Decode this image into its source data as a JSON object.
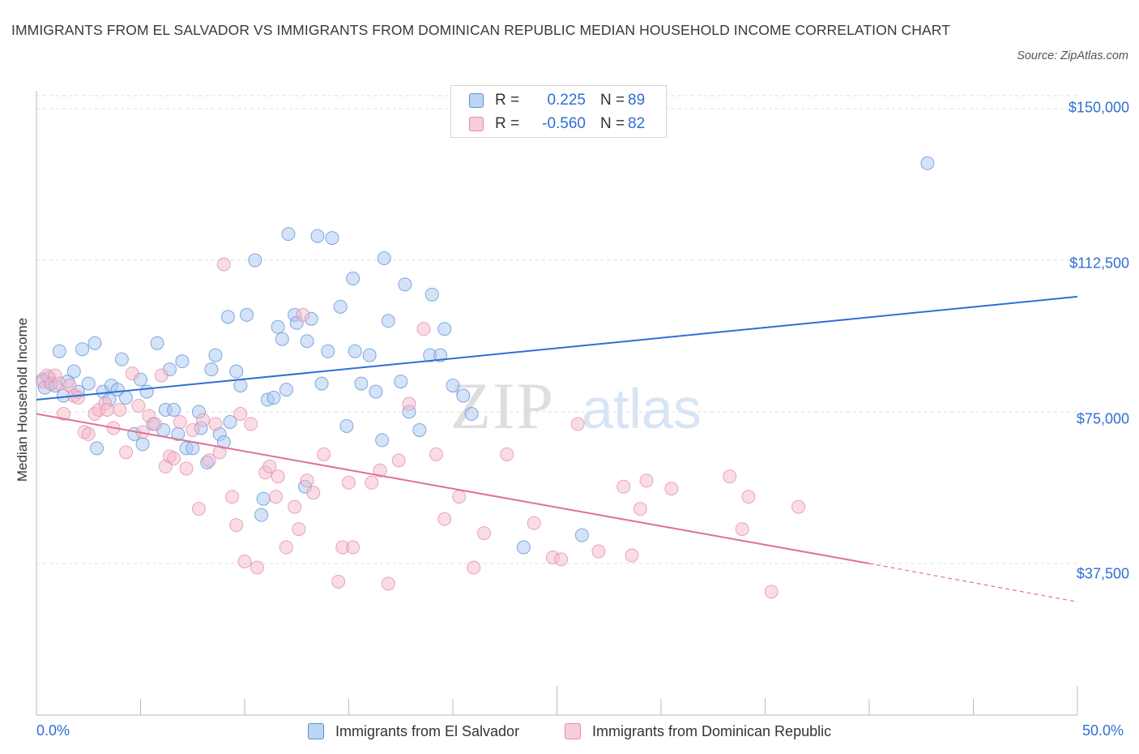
{
  "title": "IMMIGRANTS FROM EL SALVADOR VS IMMIGRANTS FROM DOMINICAN REPUBLIC MEDIAN HOUSEHOLD INCOME CORRELATION CHART",
  "source": "Source: ZipAtlas.com",
  "watermark": {
    "zip": "ZIP",
    "atlas": "atlas"
  },
  "colors": {
    "blue_fill": "#a9c8f2",
    "blue_stroke": "#5b8fd6",
    "blue_line": "#2f6fd4",
    "pink_fill": "#f5b9cb",
    "pink_stroke": "#e48aa8",
    "pink_line": "#e0709a",
    "axis_text": "#2f6fd4",
    "grid": "#dddddd"
  },
  "legend": {
    "rows": [
      {
        "r_label": "R =",
        "r_value": "0.225",
        "n_label": "N =",
        "n_value": "89"
      },
      {
        "r_label": "R =",
        "r_value": "-0.560",
        "n_label": "N =",
        "n_value": "82"
      }
    ]
  },
  "chart_data": {
    "type": "scatter",
    "title": "IMMIGRANTS FROM EL SALVADOR VS IMMIGRANTS FROM DOMINICAN REPUBLIC MEDIAN HOUSEHOLD INCOME CORRELATION CHART",
    "xlabel": "",
    "ylabel": "Median Household Income",
    "xlim": [
      0,
      50
    ],
    "ylim": [
      0,
      150000
    ],
    "x_tick_labels": [
      "0.0%",
      "50.0%"
    ],
    "y_ticks": [
      37500,
      75000,
      112500,
      150000
    ],
    "y_tick_labels": [
      "$37,500",
      "$75,000",
      "$112,500",
      "$150,000"
    ],
    "grid": true,
    "series": [
      {
        "name": "Immigrants from El Salvador",
        "color": "blue",
        "trend": {
          "x": [
            0,
            50
          ],
          "y": [
            78000,
            103500
          ]
        },
        "points": [
          [
            0.3,
            83000
          ],
          [
            0.4,
            81000
          ],
          [
            0.6,
            83500
          ],
          [
            0.7,
            82000
          ],
          [
            0.9,
            81500
          ],
          [
            1.1,
            90000
          ],
          [
            1.3,
            79000
          ],
          [
            1.5,
            82500
          ],
          [
            1.8,
            85000
          ],
          [
            2.0,
            80000
          ],
          [
            2.2,
            90500
          ],
          [
            2.5,
            82000
          ],
          [
            2.8,
            92000
          ],
          [
            2.9,
            66000
          ],
          [
            3.2,
            80000
          ],
          [
            3.5,
            78000
          ],
          [
            3.6,
            81500
          ],
          [
            3.9,
            80500
          ],
          [
            4.1,
            88000
          ],
          [
            4.3,
            78500
          ],
          [
            4.7,
            69500
          ],
          [
            5.0,
            83000
          ],
          [
            5.1,
            67000
          ],
          [
            5.3,
            80000
          ],
          [
            5.6,
            72000
          ],
          [
            5.8,
            92000
          ],
          [
            6.1,
            70500
          ],
          [
            6.2,
            75500
          ],
          [
            6.4,
            85500
          ],
          [
            6.6,
            75500
          ],
          [
            6.8,
            69500
          ],
          [
            7.0,
            87500
          ],
          [
            7.2,
            66000
          ],
          [
            7.5,
            66000
          ],
          [
            7.8,
            75000
          ],
          [
            7.9,
            71000
          ],
          [
            8.2,
            62500
          ],
          [
            8.4,
            85500
          ],
          [
            8.6,
            89000
          ],
          [
            8.8,
            69500
          ],
          [
            9.0,
            67500
          ],
          [
            9.2,
            98500
          ],
          [
            9.3,
            72500
          ],
          [
            9.6,
            85000
          ],
          [
            9.8,
            81500
          ],
          [
            10.1,
            99000
          ],
          [
            10.5,
            112500
          ],
          [
            10.9,
            53500
          ],
          [
            10.8,
            49500
          ],
          [
            11.1,
            78000
          ],
          [
            11.4,
            78500
          ],
          [
            11.6,
            96000
          ],
          [
            11.8,
            93000
          ],
          [
            12.0,
            80500
          ],
          [
            12.1,
            119000
          ],
          [
            12.4,
            99000
          ],
          [
            12.5,
            97000
          ],
          [
            12.9,
            56500
          ],
          [
            13.0,
            92500
          ],
          [
            13.2,
            98000
          ],
          [
            13.5,
            118500
          ],
          [
            13.7,
            82000
          ],
          [
            14.0,
            90000
          ],
          [
            14.2,
            118000
          ],
          [
            14.6,
            101000
          ],
          [
            14.9,
            71500
          ],
          [
            15.2,
            108000
          ],
          [
            15.3,
            90000
          ],
          [
            15.6,
            82000
          ],
          [
            16.0,
            89000
          ],
          [
            16.3,
            80000
          ],
          [
            16.6,
            68000
          ],
          [
            16.7,
            113000
          ],
          [
            16.9,
            97500
          ],
          [
            17.5,
            82500
          ],
          [
            17.7,
            106500
          ],
          [
            17.9,
            75000
          ],
          [
            18.4,
            70500
          ],
          [
            18.9,
            89000
          ],
          [
            19.0,
            104000
          ],
          [
            19.4,
            89000
          ],
          [
            19.6,
            95500
          ],
          [
            20.0,
            81500
          ],
          [
            20.5,
            79000
          ],
          [
            20.9,
            74500
          ],
          [
            23.4,
            41500
          ],
          [
            26.2,
            44500
          ],
          [
            42.8,
            136500
          ]
        ]
      },
      {
        "name": "Immigrants from Dominican Republic",
        "color": "pink",
        "trend": {
          "x": [
            0,
            40
          ],
          "y": [
            74500,
            37500
          ]
        },
        "trend_dashed": {
          "x": [
            40,
            50
          ],
          "y": [
            37500,
            28000
          ]
        },
        "points": [
          [
            0.3,
            82500
          ],
          [
            0.5,
            84000
          ],
          [
            0.7,
            82000
          ],
          [
            0.9,
            84000
          ],
          [
            1.1,
            82000
          ],
          [
            1.3,
            74500
          ],
          [
            1.6,
            81500
          ],
          [
            1.8,
            79000
          ],
          [
            2.0,
            78500
          ],
          [
            2.3,
            70000
          ],
          [
            2.5,
            69500
          ],
          [
            2.8,
            74500
          ],
          [
            3.0,
            75500
          ],
          [
            3.3,
            77000
          ],
          [
            3.4,
            75500
          ],
          [
            3.7,
            71000
          ],
          [
            4.0,
            75500
          ],
          [
            4.3,
            65000
          ],
          [
            4.6,
            84500
          ],
          [
            4.9,
            76500
          ],
          [
            5.1,
            70000
          ],
          [
            5.4,
            74000
          ],
          [
            5.7,
            72000
          ],
          [
            6.0,
            84000
          ],
          [
            6.2,
            61500
          ],
          [
            6.4,
            64000
          ],
          [
            6.6,
            63500
          ],
          [
            6.9,
            72500
          ],
          [
            7.2,
            61000
          ],
          [
            7.5,
            70500
          ],
          [
            7.8,
            51000
          ],
          [
            8.0,
            73000
          ],
          [
            8.3,
            63000
          ],
          [
            8.6,
            72000
          ],
          [
            8.8,
            65000
          ],
          [
            9.0,
            111500
          ],
          [
            9.4,
            54000
          ],
          [
            9.6,
            47000
          ],
          [
            9.8,
            74500
          ],
          [
            10.0,
            38000
          ],
          [
            10.3,
            72000
          ],
          [
            10.6,
            36500
          ],
          [
            11.0,
            60000
          ],
          [
            11.2,
            61500
          ],
          [
            11.5,
            54000
          ],
          [
            11.6,
            59000
          ],
          [
            12.0,
            41500
          ],
          [
            12.4,
            51500
          ],
          [
            12.6,
            46000
          ],
          [
            12.8,
            99000
          ],
          [
            13.0,
            58000
          ],
          [
            13.3,
            55000
          ],
          [
            13.8,
            64500
          ],
          [
            14.5,
            33000
          ],
          [
            14.7,
            41500
          ],
          [
            15.0,
            57500
          ],
          [
            15.2,
            41500
          ],
          [
            16.1,
            57500
          ],
          [
            16.5,
            60500
          ],
          [
            16.9,
            32500
          ],
          [
            17.4,
            63000
          ],
          [
            17.9,
            77000
          ],
          [
            18.6,
            95500
          ],
          [
            19.2,
            64500
          ],
          [
            19.6,
            48500
          ],
          [
            20.3,
            54000
          ],
          [
            21.0,
            36500
          ],
          [
            21.5,
            45000
          ],
          [
            22.6,
            64500
          ],
          [
            23.9,
            47500
          ],
          [
            24.8,
            39000
          ],
          [
            25.2,
            38500
          ],
          [
            26.0,
            72000
          ],
          [
            27.0,
            40500
          ],
          [
            28.2,
            56500
          ],
          [
            28.6,
            39500
          ],
          [
            29.0,
            51000
          ],
          [
            29.3,
            58000
          ],
          [
            30.5,
            56000
          ],
          [
            33.3,
            59000
          ],
          [
            33.9,
            46000
          ],
          [
            34.2,
            54000
          ],
          [
            35.3,
            30500
          ],
          [
            36.6,
            51500
          ]
        ]
      }
    ]
  },
  "bottom_legend": {
    "blue": "Immigrants from El Salvador",
    "pink": "Immigrants from Dominican Republic"
  }
}
